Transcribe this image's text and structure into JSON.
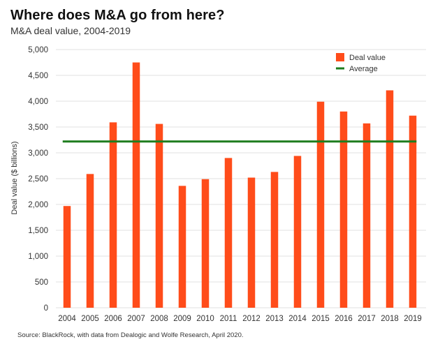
{
  "header": {
    "title": "Where does M&A go from here?",
    "subtitle": "M&A deal value, 2004-2019"
  },
  "footer": {
    "source": "Source: BlackRock, with data from Dealogic and Wolfe Research, April 2020."
  },
  "colors": {
    "bar": "#FF4C1A",
    "average": "#1E7D1E",
    "grid": "#E2E2E2"
  },
  "chart_data": {
    "type": "bar",
    "title": "Where does M&A go from here?",
    "subtitle": "M&A deal value, 2004-2019",
    "xlabel": "",
    "ylabel": "Deal value ($ billions)",
    "ylim": [
      0,
      5000
    ],
    "yticks": [
      0,
      500,
      1000,
      1500,
      2000,
      2500,
      3000,
      3500,
      4000,
      4500,
      5000
    ],
    "ytick_labels": [
      "0",
      "500",
      "1,000",
      "1,500",
      "2,000",
      "2,500",
      "3,000",
      "3,500",
      "4,000",
      "4,500",
      "5,000"
    ],
    "grid": true,
    "legend_position": "top-right",
    "categories": [
      "2004",
      "2005",
      "2006",
      "2007",
      "2008",
      "2009",
      "2010",
      "2011",
      "2012",
      "2013",
      "2014",
      "2015",
      "2016",
      "2017",
      "2018",
      "2019"
    ],
    "series": [
      {
        "name": "Deal value",
        "type": "bar",
        "values": [
          1970,
          2590,
          3590,
          4750,
          3560,
          2360,
          2490,
          2900,
          2520,
          2630,
          2940,
          3990,
          3800,
          3570,
          4210,
          3720
        ]
      },
      {
        "name": "Average",
        "type": "line",
        "value": 3220
      }
    ],
    "legend": [
      "Deal value",
      "Average"
    ]
  }
}
